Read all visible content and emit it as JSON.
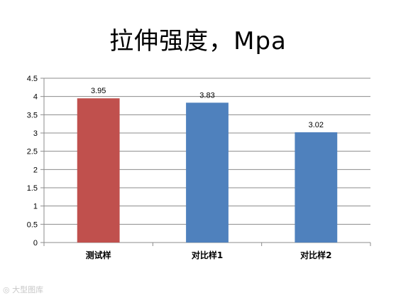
{
  "chart_data": {
    "type": "bar",
    "title": "拉伸强度，Mpa",
    "categories": [
      "测试样",
      "对比样1",
      "对比样2"
    ],
    "values": [
      3.95,
      3.83,
      3.02
    ],
    "data_labels": [
      "3.95",
      "3.83",
      "3.02"
    ],
    "bar_colors": [
      "#c0504d",
      "#4f81bd",
      "#4f81bd"
    ],
    "ylim": [
      0,
      4.5
    ],
    "yticks": [
      0,
      0.5,
      1,
      1.5,
      2,
      2.5,
      3,
      3.5,
      4,
      4.5
    ],
    "ytick_labels": [
      "0",
      "0.5",
      "1",
      "1.5",
      "2",
      "2.5",
      "3",
      "3.5",
      "4",
      "4.5"
    ],
    "xlabel": "",
    "ylabel": "",
    "grid": true,
    "legend": "none"
  },
  "watermark": {
    "text": "大型图库",
    "icon": "camera-icon"
  }
}
